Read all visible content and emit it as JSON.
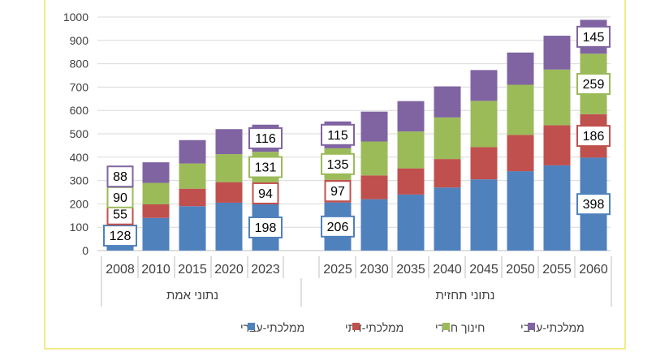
{
  "chart_data": {
    "type": "bar",
    "stacked": true,
    "categories": [
      "2008",
      "2010",
      "2015",
      "2020",
      "2023",
      "2025",
      "2030",
      "2035",
      "2040",
      "2045",
      "2050",
      "2055",
      "2060"
    ],
    "groups": [
      {
        "label": "נתוני אמת",
        "from": 0,
        "to": 4
      },
      {
        "label": "נתוני תחזית",
        "from": 5,
        "to": 12
      }
    ],
    "series": [
      {
        "name": "ממלכתי-עברי",
        "color": "#4f81bd",
        "values": [
          128,
          140,
          190,
          205,
          198,
          206,
          220,
          240,
          270,
          305,
          340,
          365,
          398
        ]
      },
      {
        "name": "ממלכתי-דתי",
        "color": "#c0504d",
        "values": [
          55,
          58,
          75,
          88,
          94,
          97,
          102,
          112,
          122,
          138,
          155,
          172,
          186
        ]
      },
      {
        "name": "חינוך חרדי",
        "color": "#9bbb59",
        "values": [
          90,
          92,
          108,
          120,
          131,
          135,
          145,
          158,
          178,
          198,
          215,
          238,
          259
        ]
      },
      {
        "name": "ממלכתי-ערבי",
        "color": "#8064a2",
        "values": [
          88,
          88,
          100,
          107,
          116,
          115,
          128,
          130,
          133,
          132,
          138,
          145,
          145
        ]
      }
    ],
    "data_labels": [
      {
        "cat": 0,
        "series": 0,
        "text": "128"
      },
      {
        "cat": 0,
        "series": 1,
        "text": "55"
      },
      {
        "cat": 0,
        "series": 2,
        "text": "90"
      },
      {
        "cat": 0,
        "series": 3,
        "text": "88"
      },
      {
        "cat": 4,
        "series": 0,
        "text": "198"
      },
      {
        "cat": 4,
        "series": 1,
        "text": "94"
      },
      {
        "cat": 4,
        "series": 2,
        "text": "131"
      },
      {
        "cat": 4,
        "series": 3,
        "text": "116"
      },
      {
        "cat": 5,
        "series": 0,
        "text": "206"
      },
      {
        "cat": 5,
        "series": 1,
        "text": "97"
      },
      {
        "cat": 5,
        "series": 2,
        "text": "135"
      },
      {
        "cat": 5,
        "series": 3,
        "text": "115"
      },
      {
        "cat": 12,
        "series": 0,
        "text": "398"
      },
      {
        "cat": 12,
        "series": 1,
        "text": "186"
      },
      {
        "cat": 12,
        "series": 2,
        "text": "259"
      },
      {
        "cat": 12,
        "series": 3,
        "text": "145"
      }
    ],
    "ylim": [
      0,
      1000
    ],
    "yticks": [
      0,
      100,
      200,
      300,
      400,
      500,
      600,
      700,
      800,
      900,
      1000
    ],
    "grid": true,
    "legend_position": "bottom",
    "legend_order": [
      3,
      2,
      1,
      0
    ]
  }
}
